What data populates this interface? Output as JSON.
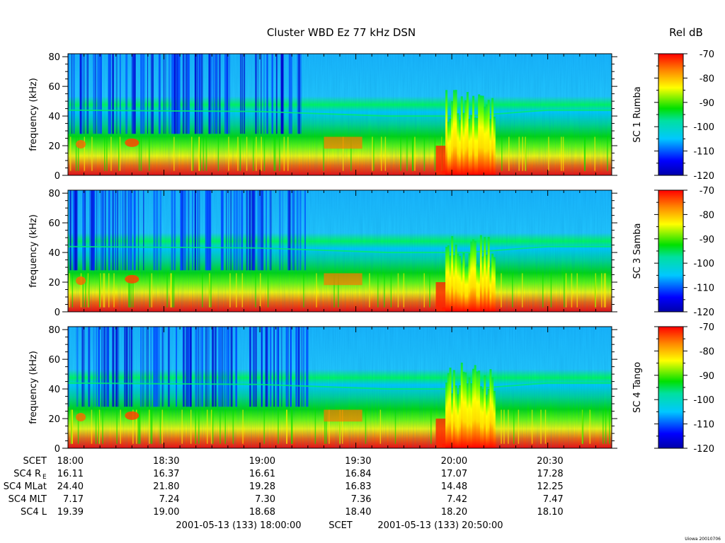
{
  "title": "Cluster WBD Ez 77 kHz DSN",
  "colorbar_label": "Rel dB",
  "footer_note": "Uiowa 20010706",
  "time_range_text": {
    "start": "2001-05-13 (133) 18:00:00",
    "mid": "SCET",
    "end": "2001-05-13 (133) 20:50:00"
  },
  "ephemeris": {
    "labels": {
      "scet": "SCET",
      "re_main": "SC4 R",
      "re_sub": "E",
      "mlat": "SC4 MLat",
      "mlt": "SC4 MLT",
      "l": "SC4 L"
    },
    "columns": [
      {
        "scet": "18:00",
        "re": "16.11",
        "mlat": "24.40",
        "mlt": "7.17",
        "l": "19.39"
      },
      {
        "scet": "18:30",
        "re": "16.37",
        "mlat": "21.80",
        "mlt": "7.24",
        "l": "19.00"
      },
      {
        "scet": "19:00",
        "re": "16.61",
        "mlat": "19.28",
        "mlt": "7.30",
        "l": "18.68"
      },
      {
        "scet": "19:30",
        "re": "16.84",
        "mlat": "16.83",
        "mlt": "7.36",
        "l": "18.40"
      },
      {
        "scet": "20:00",
        "re": "17.07",
        "mlat": "14.48",
        "mlt": "7.42",
        "l": "18.20"
      },
      {
        "scet": "20:30",
        "re": "17.28",
        "mlat": "12.25",
        "mlt": "7.47",
        "l": "18.10"
      }
    ]
  },
  "chart_data": {
    "type": "heatmap",
    "x_range_minutes": [
      0,
      170
    ],
    "x_major_ticks_minutes": [
      0,
      30,
      60,
      90,
      120,
      150
    ],
    "x_minor_step_minutes": 5,
    "ylabel": "frequency (kHz)",
    "ylim": [
      0,
      82
    ],
    "yticks": [
      0,
      20,
      40,
      60,
      80
    ],
    "y_minor_step": 5,
    "colorbar": {
      "range": [
        -120,
        -70
      ],
      "ticks": [
        "-70",
        "-80",
        "-90",
        "-100",
        "-110",
        "-120"
      ],
      "colors": [
        "#0000aa",
        "#0000ff",
        "#00c8ff",
        "#00e0a0",
        "#00e000",
        "#ffff00",
        "#ff8800",
        "#ff0000"
      ]
    },
    "panels": [
      {
        "spacecraft_label": "SC 1 Rumba"
      },
      {
        "spacecraft_label": "SC 3 Samba"
      },
      {
        "spacecraft_label": "SC 4 Tango"
      }
    ]
  }
}
